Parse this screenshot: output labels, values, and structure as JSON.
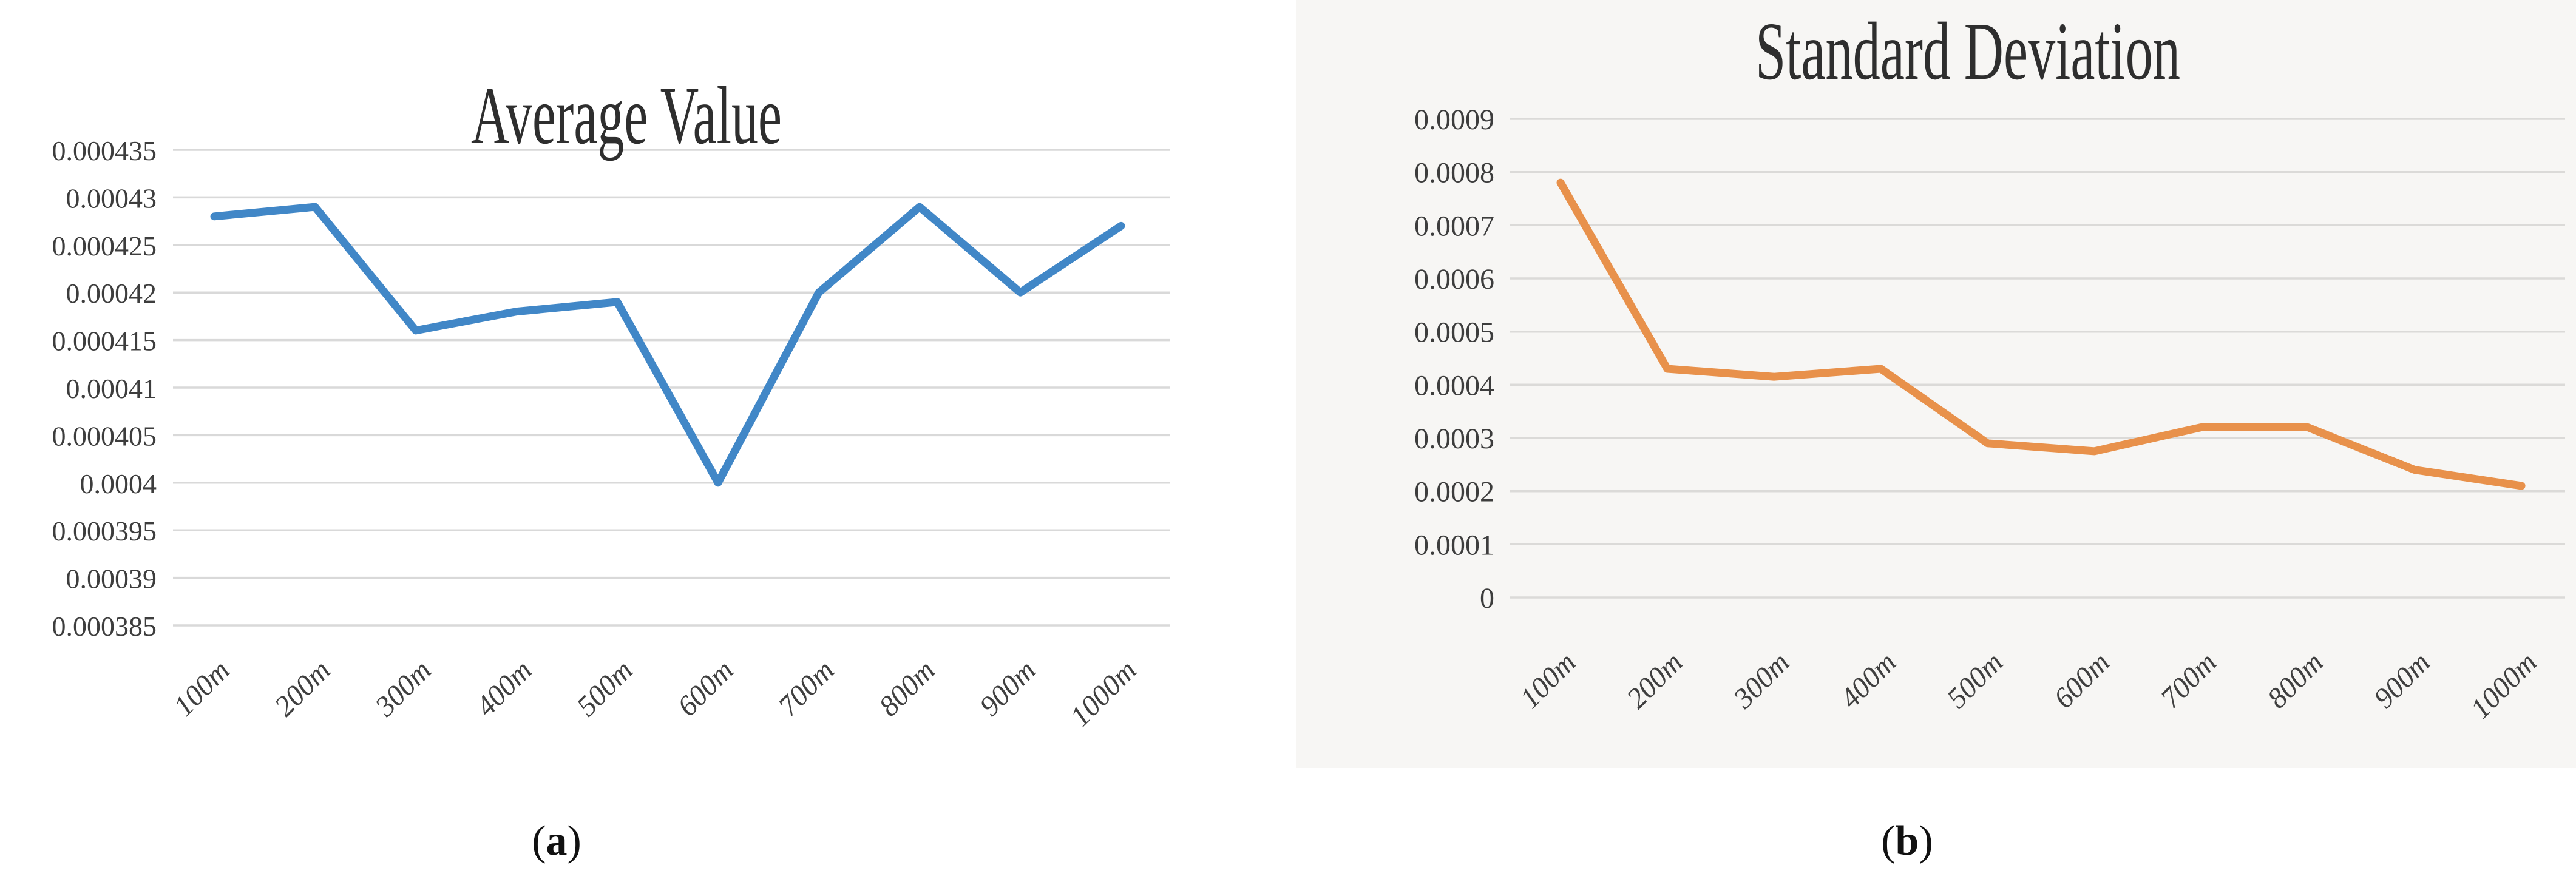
{
  "captions": {
    "a": {
      "open": "(",
      "letter": "a",
      "close": ")"
    },
    "b": {
      "open": "(",
      "letter": "b",
      "close": ")"
    }
  },
  "styles": {
    "text_color": "#3d3d3d",
    "left_grid_color": "#d9d9d9",
    "right_grid_color": "#dbdad8",
    "right_panel_tint": "#f7f6f4",
    "blue_line": "#4187c7",
    "orange_line": "#e8914b"
  },
  "chart_data": [
    {
      "type": "line",
      "title": "Average Value",
      "categories": [
        "100m",
        "200m",
        "300m",
        "400m",
        "500m",
        "600m",
        "700m",
        "800m",
        "900m",
        "1000m"
      ],
      "values": [
        0.000428,
        0.000429,
        0.000416,
        0.000418,
        0.000419,
        0.0004,
        0.00042,
        0.000429,
        0.00042,
        0.000427
      ],
      "ylim": [
        0.000385,
        0.000435
      ],
      "yticks": [
        "0.000435",
        "0.00043",
        "0.000425",
        "0.00042",
        "0.000415",
        "0.00041",
        "0.000405",
        "0.0004",
        "0.000395",
        "0.00039",
        "0.000385"
      ],
      "xlabel": "",
      "ylabel": "",
      "grid": true,
      "legend": "none",
      "x_tick_rotation": 45,
      "line_color": "#4187c7",
      "grid_color": "#d9d9d9"
    },
    {
      "type": "line",
      "title": "Standard Deviation",
      "categories": [
        "100m",
        "200m",
        "300m",
        "400m",
        "500m",
        "600m",
        "700m",
        "800m",
        "900m",
        "1000m"
      ],
      "values": [
        0.00078,
        0.00043,
        0.000415,
        0.00043,
        0.00029,
        0.000275,
        0.00032,
        0.00032,
        0.00024,
        0.00021
      ],
      "ylim": [
        0,
        0.0009
      ],
      "yticks": [
        "0.0009",
        "0.0008",
        "0.0007",
        "0.0006",
        "0.0005",
        "0.0004",
        "0.0003",
        "0.0002",
        "0.0001",
        "0"
      ],
      "xlabel": "",
      "ylabel": "",
      "grid": true,
      "legend": "none",
      "x_tick_rotation": 45,
      "line_color": "#e8914b",
      "grid_color": "#dbdad8"
    }
  ]
}
